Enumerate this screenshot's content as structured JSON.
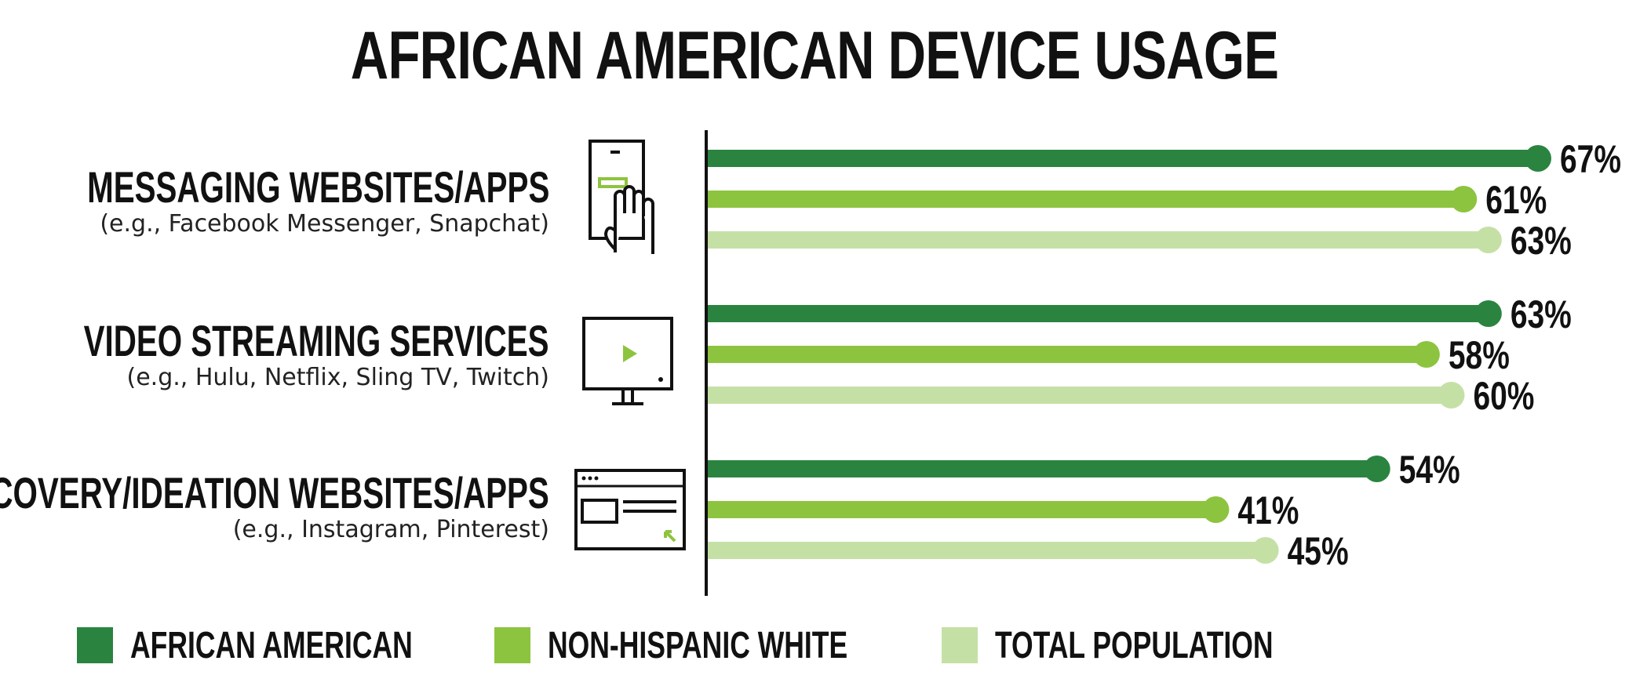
{
  "title": "AFRICAN AMERICAN DEVICE USAGE",
  "colors": {
    "african_american": "#2a8440",
    "non_hispanic_white": "#8dc43f",
    "total_population": "#c5e0a5"
  },
  "categories": [
    {
      "name": "MESSAGING WEBSITES/APPS",
      "examples": "(e.g., Facebook Messenger, Snapchat)",
      "icon": "smartphone-tap-icon"
    },
    {
      "name": "VIDEO STREAMING SERVICES",
      "examples": "(e.g., Hulu, Netflix, Sling TV, Twitch)",
      "icon": "monitor-play-icon"
    },
    {
      "name": "DISCOVERY/IDEATION WEBSITES/APPS",
      "examples": "(e.g., Instagram, Pinterest)",
      "icon": "browser-window-icon"
    }
  ],
  "legend": [
    {
      "label": "AFRICAN AMERICAN"
    },
    {
      "label": "NON-HISPANIC WHITE"
    },
    {
      "label": "TOTAL POPULATION"
    }
  ],
  "chart_data": {
    "type": "bar",
    "orientation": "horizontal",
    "title": "AFRICAN AMERICAN DEVICE USAGE",
    "categories": [
      "MESSAGING WEBSITES/APPS",
      "VIDEO STREAMING SERVICES",
      "DISCOVERY/IDEATION WEBSITES/APPS"
    ],
    "series": [
      {
        "name": "AFRICAN AMERICAN",
        "values": [
          67,
          63,
          54
        ],
        "labels": [
          "67%",
          "63%",
          "54%"
        ],
        "color": "#2a8440"
      },
      {
        "name": "NON-HISPANIC WHITE",
        "values": [
          61,
          58,
          41
        ],
        "labels": [
          "61%",
          "58%",
          "41%"
        ],
        "color": "#8dc43f"
      },
      {
        "name": "TOTAL POPULATION",
        "values": [
          63,
          60,
          45
        ],
        "labels": [
          "63%",
          "60%",
          "45%"
        ],
        "color": "#c5e0a5"
      }
    ],
    "unit": "%",
    "grid": false,
    "legend_position": "bottom"
  }
}
